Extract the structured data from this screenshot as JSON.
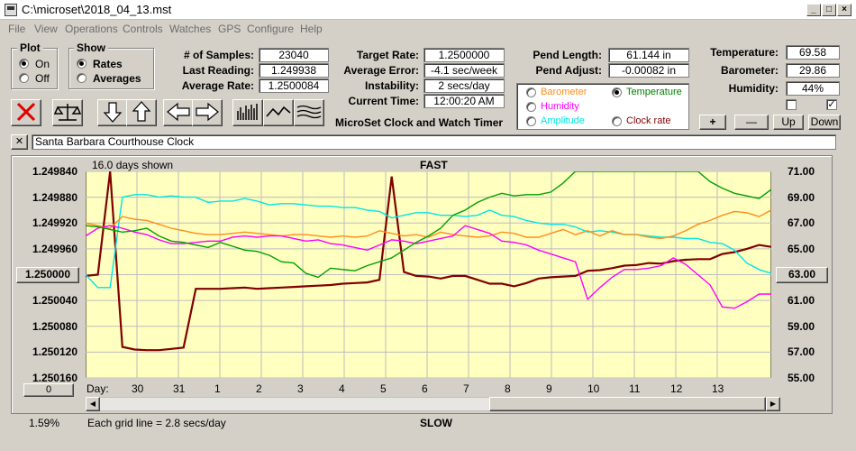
{
  "window": {
    "title": "C:\\microset\\2018_04_13.mst"
  },
  "menu": [
    "File",
    "View",
    "Operations",
    "Controls",
    "Watches",
    "GPS",
    "Configure",
    "Help"
  ],
  "plot_group": {
    "title": "Plot",
    "on": "On",
    "off": "Off",
    "selected": "On"
  },
  "show_group": {
    "title": "Show",
    "rates": "Rates",
    "averages": "Averages",
    "selected": "Rates"
  },
  "stats": {
    "samples_label": "# of Samples:",
    "samples": "23040",
    "last_reading_label": "Last Reading:",
    "last_reading": "1.249938",
    "average_rate_label": "Average Rate:",
    "average_rate": "1.2500084",
    "target_rate_label": "Target Rate:",
    "target_rate": "1.2500000",
    "average_error_label": "Average Error:",
    "average_error": "-4.1 sec/week",
    "instability_label": "Instability:",
    "instability": "2 secs/day",
    "current_time_label": "Current Time:",
    "current_time": "12:00:20 AM",
    "pend_length_label": "Pend Length:",
    "pend_length": "61.144 in",
    "pend_adjust_label": "Pend Adjust:",
    "pend_adjust": "-0.00082 in",
    "temperature_label": "Temperature:",
    "temperature": "69.58",
    "barometer_label": "Barometer:",
    "barometer": "29.86",
    "humidity_label": "Humidity:",
    "humidity": "44%"
  },
  "app_name": "MicroSet Clock and Watch Timer",
  "overlay": {
    "barometer": "Barometer",
    "temperature": "Temperature",
    "humidity": "Humidity",
    "amplitude": "Amplitude",
    "clock_rate": "Clock rate",
    "selected": "Temperature",
    "colors": {
      "barometer": "#ff8c1a",
      "temperature": "#008000",
      "humidity": "#ff00ff",
      "amplitude": "#00e5e5",
      "clock_rate": "#800000"
    }
  },
  "adjust_buttons": {
    "plus": "+",
    "minus": "—",
    "up": "Up",
    "down": "Down"
  },
  "clock_name": "Santa Barbara Courthouse Clock",
  "close_x": "✕",
  "chart": {
    "days_shown": "16.0 days shown",
    "fast": "FAST",
    "slow": "SLOW",
    "grid_note": "Each grid line = 2.8 secs/day",
    "percent": "1.59%",
    "day_label": "Day:",
    "left_button": "1.250000",
    "right_button": "63.00",
    "bottom_button": "0"
  },
  "chart_data": {
    "type": "line",
    "left_axis_ticks": [
      "1.249840",
      "1.249880",
      "1.249920",
      "1.249960",
      "1.250000",
      "1.250040",
      "1.250080",
      "1.250120",
      "1.250160"
    ],
    "right_axis_ticks": [
      "71.00",
      "69.00",
      "67.00",
      "65.00",
      "63.00",
      "61.00",
      "59.00",
      "57.00",
      "55.00"
    ],
    "left_ylim": [
      1.24984,
      1.25016
    ],
    "right_ylim": [
      55,
      71
    ],
    "x_tick_labels": [
      "30",
      "31",
      "1",
      "2",
      "3",
      "4",
      "5",
      "6",
      "7",
      "8",
      "9",
      "10",
      "11",
      "12",
      "13"
    ],
    "grid": true,
    "series": [
      {
        "color": "#800000",
        "values": [
          1.250002,
          1.25,
          1.249835,
          1.250112,
          1.250116,
          1.250117,
          1.250117,
          1.250115,
          1.250113,
          1.250022,
          1.250022,
          1.250022,
          1.250021,
          1.25002,
          1.250022,
          1.250021,
          1.25002,
          1.250019,
          1.250018,
          1.250017,
          1.250016,
          1.250014,
          1.250013,
          1.250012,
          1.250008,
          1.249848,
          1.249996,
          1.250002,
          1.250003,
          1.250006,
          1.250002,
          1.250002,
          1.250008,
          1.250014,
          1.250014,
          1.250018,
          1.250013,
          1.250006,
          1.250004,
          1.250003,
          1.250002,
          1.249994,
          1.249993,
          1.24999,
          1.249986,
          1.249985,
          1.249982,
          1.249983,
          1.249979,
          1.249977,
          1.249976,
          1.249976,
          1.249968,
          1.249965,
          1.24996,
          1.249954,
          1.249957
        ]
      },
      {
        "color": "#00e5e5",
        "values": [
          63.0,
          62.0,
          62.0,
          69.0,
          69.2,
          69.2,
          69.0,
          69.1,
          69.0,
          69.0,
          68.6,
          68.7,
          68.7,
          68.9,
          68.7,
          68.4,
          68.5,
          68.5,
          68.4,
          68.3,
          68.3,
          68.2,
          68.2,
          68.0,
          67.9,
          67.4,
          67.6,
          67.8,
          67.8,
          67.6,
          67.6,
          67.5,
          67.6,
          68.0,
          67.6,
          67.5,
          67.2,
          67.0,
          66.9,
          66.9,
          66.7,
          66.3,
          66.4,
          66.3,
          66.1,
          66.1,
          66.0,
          65.9,
          65.9,
          65.8,
          65.8,
          65.5,
          65.4,
          64.9,
          63.9,
          63.4,
          63.1
        ]
      },
      {
        "color": "#ff8c1a",
        "values": [
          67.0,
          66.8,
          66.6,
          67.5,
          67.3,
          67.2,
          66.9,
          66.6,
          66.4,
          66.2,
          66.1,
          66.1,
          66.2,
          66.3,
          66.2,
          66.1,
          66.0,
          66.1,
          66.1,
          66.0,
          65.9,
          66.0,
          65.9,
          66.0,
          66.4,
          66.2,
          66.0,
          66.1,
          65.9,
          66.3,
          66.1,
          66.0,
          65.9,
          66.0,
          66.3,
          66.2,
          65.9,
          65.9,
          66.2,
          66.5,
          66.1,
          66.4,
          66.0,
          66.4,
          66.1,
          66.1,
          65.9,
          65.8,
          66.0,
          66.4,
          66.9,
          67.2,
          67.6,
          67.9,
          67.8,
          67.5,
          68.0
        ]
      },
      {
        "color": "#ff00ff",
        "values": [
          66.0,
          66.6,
          66.8,
          66.6,
          66.3,
          66.1,
          65.7,
          65.4,
          65.4,
          65.5,
          65.6,
          65.6,
          65.9,
          66.0,
          65.9,
          66.0,
          66.0,
          65.8,
          65.6,
          65.7,
          65.4,
          65.3,
          65.1,
          64.9,
          65.3,
          65.7,
          65.6,
          65.4,
          65.6,
          65.8,
          66.0,
          66.8,
          66.5,
          66.2,
          65.6,
          65.5,
          65.3,
          64.9,
          64.6,
          64.3,
          64.0,
          61.1,
          62.0,
          62.8,
          63.4,
          63.4,
          63.5,
          63.7,
          64.3,
          63.8,
          63.0,
          62.2,
          60.5,
          60.4,
          60.9,
          61.5,
          61.5
        ]
      },
      {
        "color": "#00a000",
        "values": [
          66.8,
          66.7,
          66.5,
          66.3,
          66.4,
          66.6,
          66.0,
          65.6,
          65.5,
          65.3,
          65.1,
          65.5,
          65.2,
          64.9,
          64.8,
          64.5,
          64.0,
          63.9,
          63.1,
          62.8,
          63.5,
          63.4,
          63.3,
          63.7,
          64.0,
          64.3,
          64.9,
          65.5,
          66.0,
          66.6,
          67.6,
          68.0,
          68.6,
          69.0,
          69.3,
          69.1,
          69.2,
          69.2,
          69.4,
          70.1,
          71.0,
          71.0,
          71.0,
          71.0,
          71.0,
          71.0,
          71.0,
          71.0,
          71.0,
          71.0,
          71.0,
          70.2,
          69.7,
          69.3,
          69.1,
          68.9,
          69.6
        ]
      }
    ]
  }
}
